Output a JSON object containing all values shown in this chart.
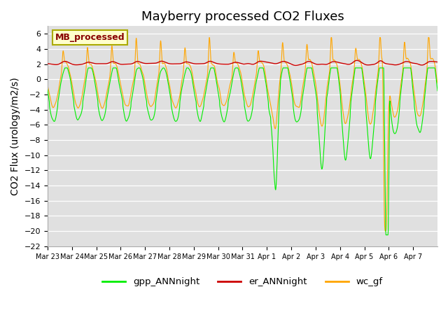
{
  "title": "Mayberry processed CO2 Fluxes",
  "ylabel": "CO2 Flux (urology/m2/s)",
  "ylim": [
    -22,
    7
  ],
  "yticks": [
    -22,
    -20,
    -18,
    -16,
    -14,
    -12,
    -10,
    -8,
    -6,
    -4,
    -2,
    0,
    2,
    4,
    6
  ],
  "legend_label_box": "MB_processed",
  "legend_box_facecolor": "#ffffcc",
  "legend_box_edgecolor": "#aaaa00",
  "legend_text_color": "#880000",
  "bg_color": "#e0e0e0",
  "line_colors": {
    "gpp": "#00ee00",
    "er": "#cc0000",
    "wc": "#ffa500"
  },
  "legend_entries": [
    {
      "label": "gpp_ANNnight",
      "color": "#00ee00"
    },
    {
      "label": "er_ANNnight",
      "color": "#cc0000"
    },
    {
      "label": "wc_gf",
      "color": "#ffa500"
    }
  ],
  "tick_labels": [
    "Mar 23",
    "Mar 24",
    "Mar 25",
    "Mar 26",
    "Mar 27",
    "Mar 28",
    "Mar 29",
    "Mar 30",
    "Mar 31",
    "Apr 1",
    "Apr 2",
    "Apr 3",
    "Apr 4",
    "Apr 5",
    "Apr 6",
    "Apr 7"
  ],
  "title_fontsize": 13,
  "axis_fontsize": 10,
  "tick_fontsize": 8
}
